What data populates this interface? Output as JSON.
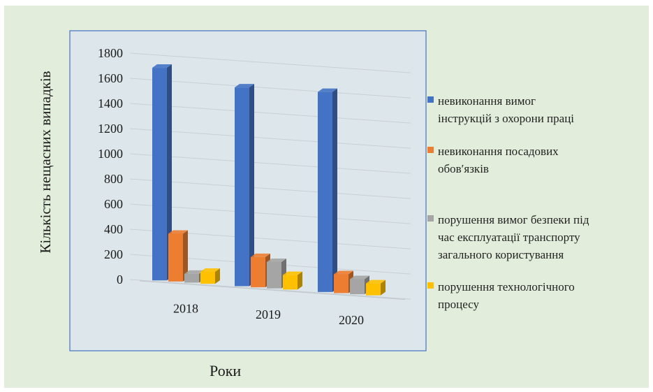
{
  "chart_data": {
    "type": "bar",
    "title": "",
    "xlabel": "Роки",
    "ylabel": "Кількість нещасних випадків",
    "ylim": [
      0,
      1800
    ],
    "yticks": [
      "0",
      "200",
      "400",
      "600",
      "800",
      "1000",
      "1200",
      "1400",
      "1600",
      "1800"
    ],
    "categories": [
      "2018",
      "2019",
      "2020"
    ],
    "grid": true,
    "legend_position": "right",
    "series": [
      {
        "name": "невиконання вимог інструкцій з охорони праці",
        "color": "#4472c4",
        "values": [
          1690,
          1580,
          1590
        ]
      },
      {
        "name": "невиконання посадових обовʹязків",
        "color": "#ed7d31",
        "values": [
          380,
          240,
          150
        ]
      },
      {
        "name": "порушення вимог безпеки під час експлуатації транспорту загального користування",
        "color": "#a5a5a5",
        "values": [
          70,
          210,
          120
        ]
      },
      {
        "name": "порушення технологічного процесу",
        "color": "#ffc000",
        "values": [
          95,
          115,
          95
        ]
      }
    ]
  },
  "legend_lines": [
    [
      "невиконання вимог",
      "інструкцій з охорони праці"
    ],
    [
      "невиконання посадових",
      "обовʹязків"
    ],
    [
      "порушення вимог безпеки під",
      "час експлуатації транспорту",
      "загального користування"
    ],
    [
      "порушення технологічного",
      "процесу"
    ]
  ]
}
